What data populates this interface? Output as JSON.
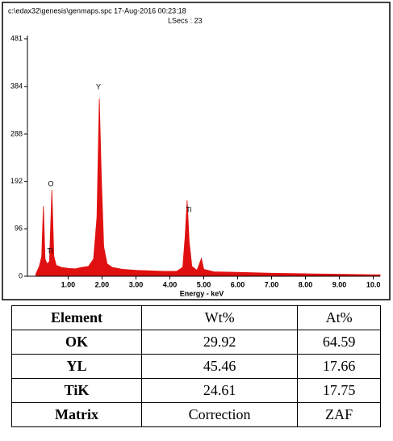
{
  "chart_data": {
    "type": "area",
    "title": "c:\\edax32\\genesis\\genmaps.spc  17-Aug-2016 00:23:18",
    "subtitle": "LSecs : 23",
    "xlabel": "Energy - keV",
    "color": "#e01010",
    "x": [
      0.05,
      0.15,
      0.22,
      0.27,
      0.32,
      0.38,
      0.45,
      0.52,
      0.58,
      0.65,
      0.8,
      1.0,
      1.2,
      1.4,
      1.6,
      1.75,
      1.85,
      1.92,
      1.98,
      2.05,
      2.15,
      2.3,
      2.6,
      3.0,
      3.4,
      3.8,
      4.2,
      4.38,
      4.45,
      4.51,
      4.57,
      4.65,
      4.8,
      4.93,
      5.0,
      5.3,
      6.0,
      7.0,
      8.0,
      9.0,
      10.0,
      10.2
    ],
    "values": [
      5,
      20,
      40,
      142,
      35,
      25,
      30,
      175,
      40,
      22,
      18,
      16,
      15,
      18,
      20,
      35,
      120,
      360,
      200,
      60,
      25,
      18,
      14,
      12,
      11,
      10,
      10,
      18,
      80,
      154,
      70,
      20,
      12,
      36,
      14,
      9,
      8,
      6,
      5,
      4,
      3,
      3
    ],
    "xlim": [
      -0.2,
      10.2
    ],
    "ylim": [
      0,
      481
    ],
    "xticks": [
      {
        "value": 1,
        "label": "1.00"
      },
      {
        "value": 2,
        "label": "2.00"
      },
      {
        "value": 3,
        "label": "3.00"
      },
      {
        "value": 4,
        "label": "4.00"
      },
      {
        "value": 5,
        "label": "5.00"
      },
      {
        "value": 6,
        "label": "6.00"
      },
      {
        "value": 7,
        "label": "7.00"
      },
      {
        "value": 8,
        "label": "8.00"
      },
      {
        "value": 9,
        "label": "9.00"
      },
      {
        "value": 10,
        "label": "10.0"
      }
    ],
    "yticks": [
      0,
      96,
      192,
      288,
      384,
      481
    ],
    "annotations": [
      "Y",
      "O",
      "Ti",
      "Ti"
    ]
  },
  "table": {
    "header": [
      "Element",
      "Wt%",
      "At%"
    ],
    "rows": [
      [
        "OK",
        "29.92",
        "64.59"
      ],
      [
        "YL",
        "45.46",
        "17.66"
      ],
      [
        "TiK",
        "24.61",
        "17.75"
      ],
      [
        "Matrix",
        "Correction",
        "ZAF"
      ]
    ]
  }
}
